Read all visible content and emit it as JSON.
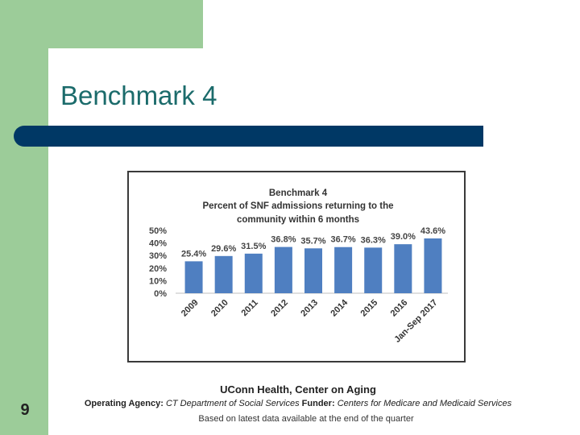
{
  "slide": {
    "title": "Benchmark 4",
    "number": "9"
  },
  "footer": {
    "title": "UConn Health, Center on Aging",
    "agency_label": "Operating Agency:",
    "agency_value": "CT Department of Social Services",
    "funder_label": "Funder:",
    "funder_value": "Centers for Medicare and Medicaid Services",
    "note": "Based on latest data available at the end of the quarter"
  },
  "colors": {
    "bar": "#4f7fc1",
    "title_bar": "#003865",
    "accent_green": "#9ccc99",
    "title_text": "#1b6b6b"
  },
  "chart_data": {
    "type": "bar",
    "title": "Benchmark 4",
    "subtitle_lines": [
      "Percent of SNF admissions returning to the",
      "community within 6 months"
    ],
    "categories": [
      "2009",
      "2010",
      "2011",
      "2012",
      "2013",
      "2014",
      "2015",
      "2016",
      "Jan-Sep 2017"
    ],
    "values": [
      25.4,
      29.6,
      31.5,
      36.8,
      35.7,
      36.7,
      36.3,
      39.0,
      43.6
    ],
    "value_labels": [
      "25.4%",
      "29.6%",
      "31.5%",
      "36.8%",
      "35.7%",
      "36.7%",
      "36.3%",
      "39.0%",
      "43.6%"
    ],
    "y_ticks": [
      "50%",
      "40%",
      "30%",
      "20%",
      "10%",
      "0%"
    ],
    "y_tick_values": [
      50,
      40,
      30,
      20,
      10,
      0
    ],
    "xlabel": "",
    "ylabel": "",
    "ylim": [
      0,
      50
    ],
    "grid": false,
    "legend": "none"
  }
}
